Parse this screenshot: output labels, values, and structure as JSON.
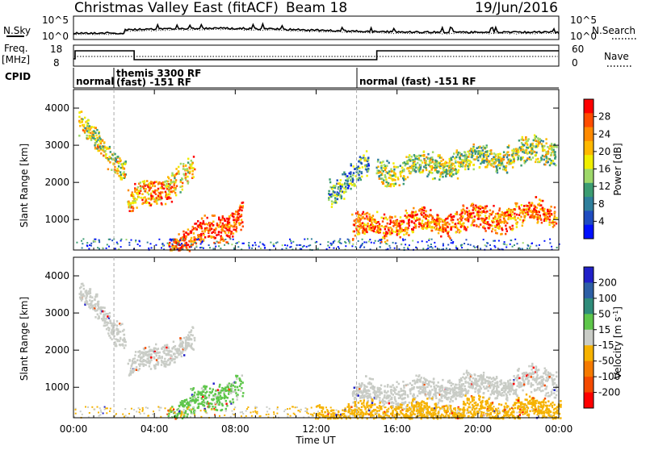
{
  "header": {
    "station": "Christmas Valley East (fitACF)",
    "beam": "Beam 18",
    "date": "19/Jun/2016"
  },
  "noise_panel": {
    "left_label": "N.Sky",
    "right_label": "N.Search",
    "left_ticks": [
      "10^5",
      "10^0"
    ],
    "right_ticks": [
      "10^5",
      "10^0"
    ]
  },
  "freq_panel": {
    "left_label_1": "Freq.",
    "left_label_2": "[MHz]",
    "right_label": "Nave",
    "left_ticks": [
      "18",
      "8"
    ],
    "right_ticks": [
      "60",
      "0"
    ]
  },
  "cpid": {
    "label": "CPID",
    "segments": [
      {
        "start_hour": 0.0,
        "end_hour": 2.0,
        "line1": "normal",
        "line2": ""
      },
      {
        "start_hour": 2.0,
        "end_hour": 14.0,
        "line1": "themis 3300 RF",
        "line2": "(fast) -151 RF"
      },
      {
        "start_hour": 14.0,
        "end_hour": 24.0,
        "line1": "normal (fast) -151 RF",
        "line2": ""
      }
    ]
  },
  "chart_data": [
    {
      "type": "heatmap",
      "title": "",
      "quantity": "Power",
      "ylabel": "Slant Range [km]",
      "xlabel": "Time UT",
      "xlim": [
        0,
        24
      ],
      "ylim": [
        180,
        4500
      ],
      "x_ticks": [
        "00:00",
        "04:00",
        "08:00",
        "12:00",
        "16:00",
        "20:00",
        "00:00"
      ],
      "y_ticks": [
        1000,
        2000,
        3000,
        4000
      ],
      "colorbar": {
        "label": "Power [dB]",
        "ticks": [
          "28",
          "24",
          "20",
          "16",
          "12",
          "8",
          "4"
        ],
        "colors": [
          "#ff0000",
          "#ff4c00",
          "#ff8a00",
          "#ffb800",
          "#f0ee00",
          "#9ed86a",
          "#3c9c72",
          "#2f7f9c",
          "#1f4cc0",
          "#0010ff"
        ]
      },
      "features": [
        {
          "t_start": 0.3,
          "t_end": 2.5,
          "r_start": 3500,
          "r_end": 2400,
          "level_db": 18
        },
        {
          "t_start": 2.7,
          "t_end": 4.8,
          "r_start": 1500,
          "r_end": 1900,
          "level_db": 22
        },
        {
          "t_start": 4.6,
          "t_end": 5.9,
          "r_start": 2100,
          "r_end": 2300,
          "level_db": 20
        },
        {
          "t_start": 4.7,
          "t_end": 8.3,
          "r_start": 250,
          "r_end": 1100,
          "level_db": 26
        },
        {
          "t_start": 13.8,
          "t_end": 23.8,
          "r_start": 800,
          "r_end": 1200,
          "level_db": 24
        },
        {
          "t_start": 15.0,
          "t_end": 23.8,
          "r_start": 2300,
          "r_end": 2900,
          "level_db": 16
        },
        {
          "t_start": 12.6,
          "t_end": 14.5,
          "r_start": 1800,
          "r_end": 2400,
          "level_db": 12
        }
      ]
    },
    {
      "type": "heatmap",
      "title": "",
      "quantity": "Velocity",
      "ylabel": "Slant Range [km]",
      "xlabel": "Time UT",
      "xlim": [
        0,
        24
      ],
      "ylim": [
        180,
        4500
      ],
      "x_ticks": [
        "00:00",
        "04:00",
        "08:00",
        "12:00",
        "16:00",
        "20:00",
        "00:00"
      ],
      "y_ticks": [
        1000,
        2000,
        3000,
        4000
      ],
      "colorbar": {
        "label": "Velocity [m s^-1]",
        "ticks": [
          "200",
          "100",
          "50",
          "15",
          "-15",
          "-50",
          "-100",
          "-200"
        ],
        "colors": [
          "#2020c8",
          "#2d5fa5",
          "#2f8c7a",
          "#5ec64a",
          "#c9ccc6",
          "#f6b200",
          "#f57a00",
          "#f44a00",
          "#ff0000"
        ]
      },
      "features": [
        {
          "t_start": 0.3,
          "t_end": 2.5,
          "r_start": 3500,
          "r_end": 2400,
          "velocity": 0
        },
        {
          "t_start": 2.7,
          "t_end": 5.9,
          "r_start": 1500,
          "r_end": 2300,
          "velocity": 0
        },
        {
          "t_start": 4.7,
          "t_end": 8.3,
          "r_start": 250,
          "r_end": 1100,
          "velocity": 40
        },
        {
          "t_start": 13.8,
          "t_end": 23.8,
          "r_start": 800,
          "r_end": 1200,
          "velocity": 0
        },
        {
          "t_start": 12.0,
          "t_end": 24.0,
          "r_start": 200,
          "r_end": 450,
          "velocity": -60
        }
      ]
    }
  ],
  "x_axis": {
    "label": "Time UT",
    "ticks": [
      "00:00",
      "04:00",
      "08:00",
      "12:00",
      "16:00",
      "20:00",
      "00:00"
    ]
  }
}
